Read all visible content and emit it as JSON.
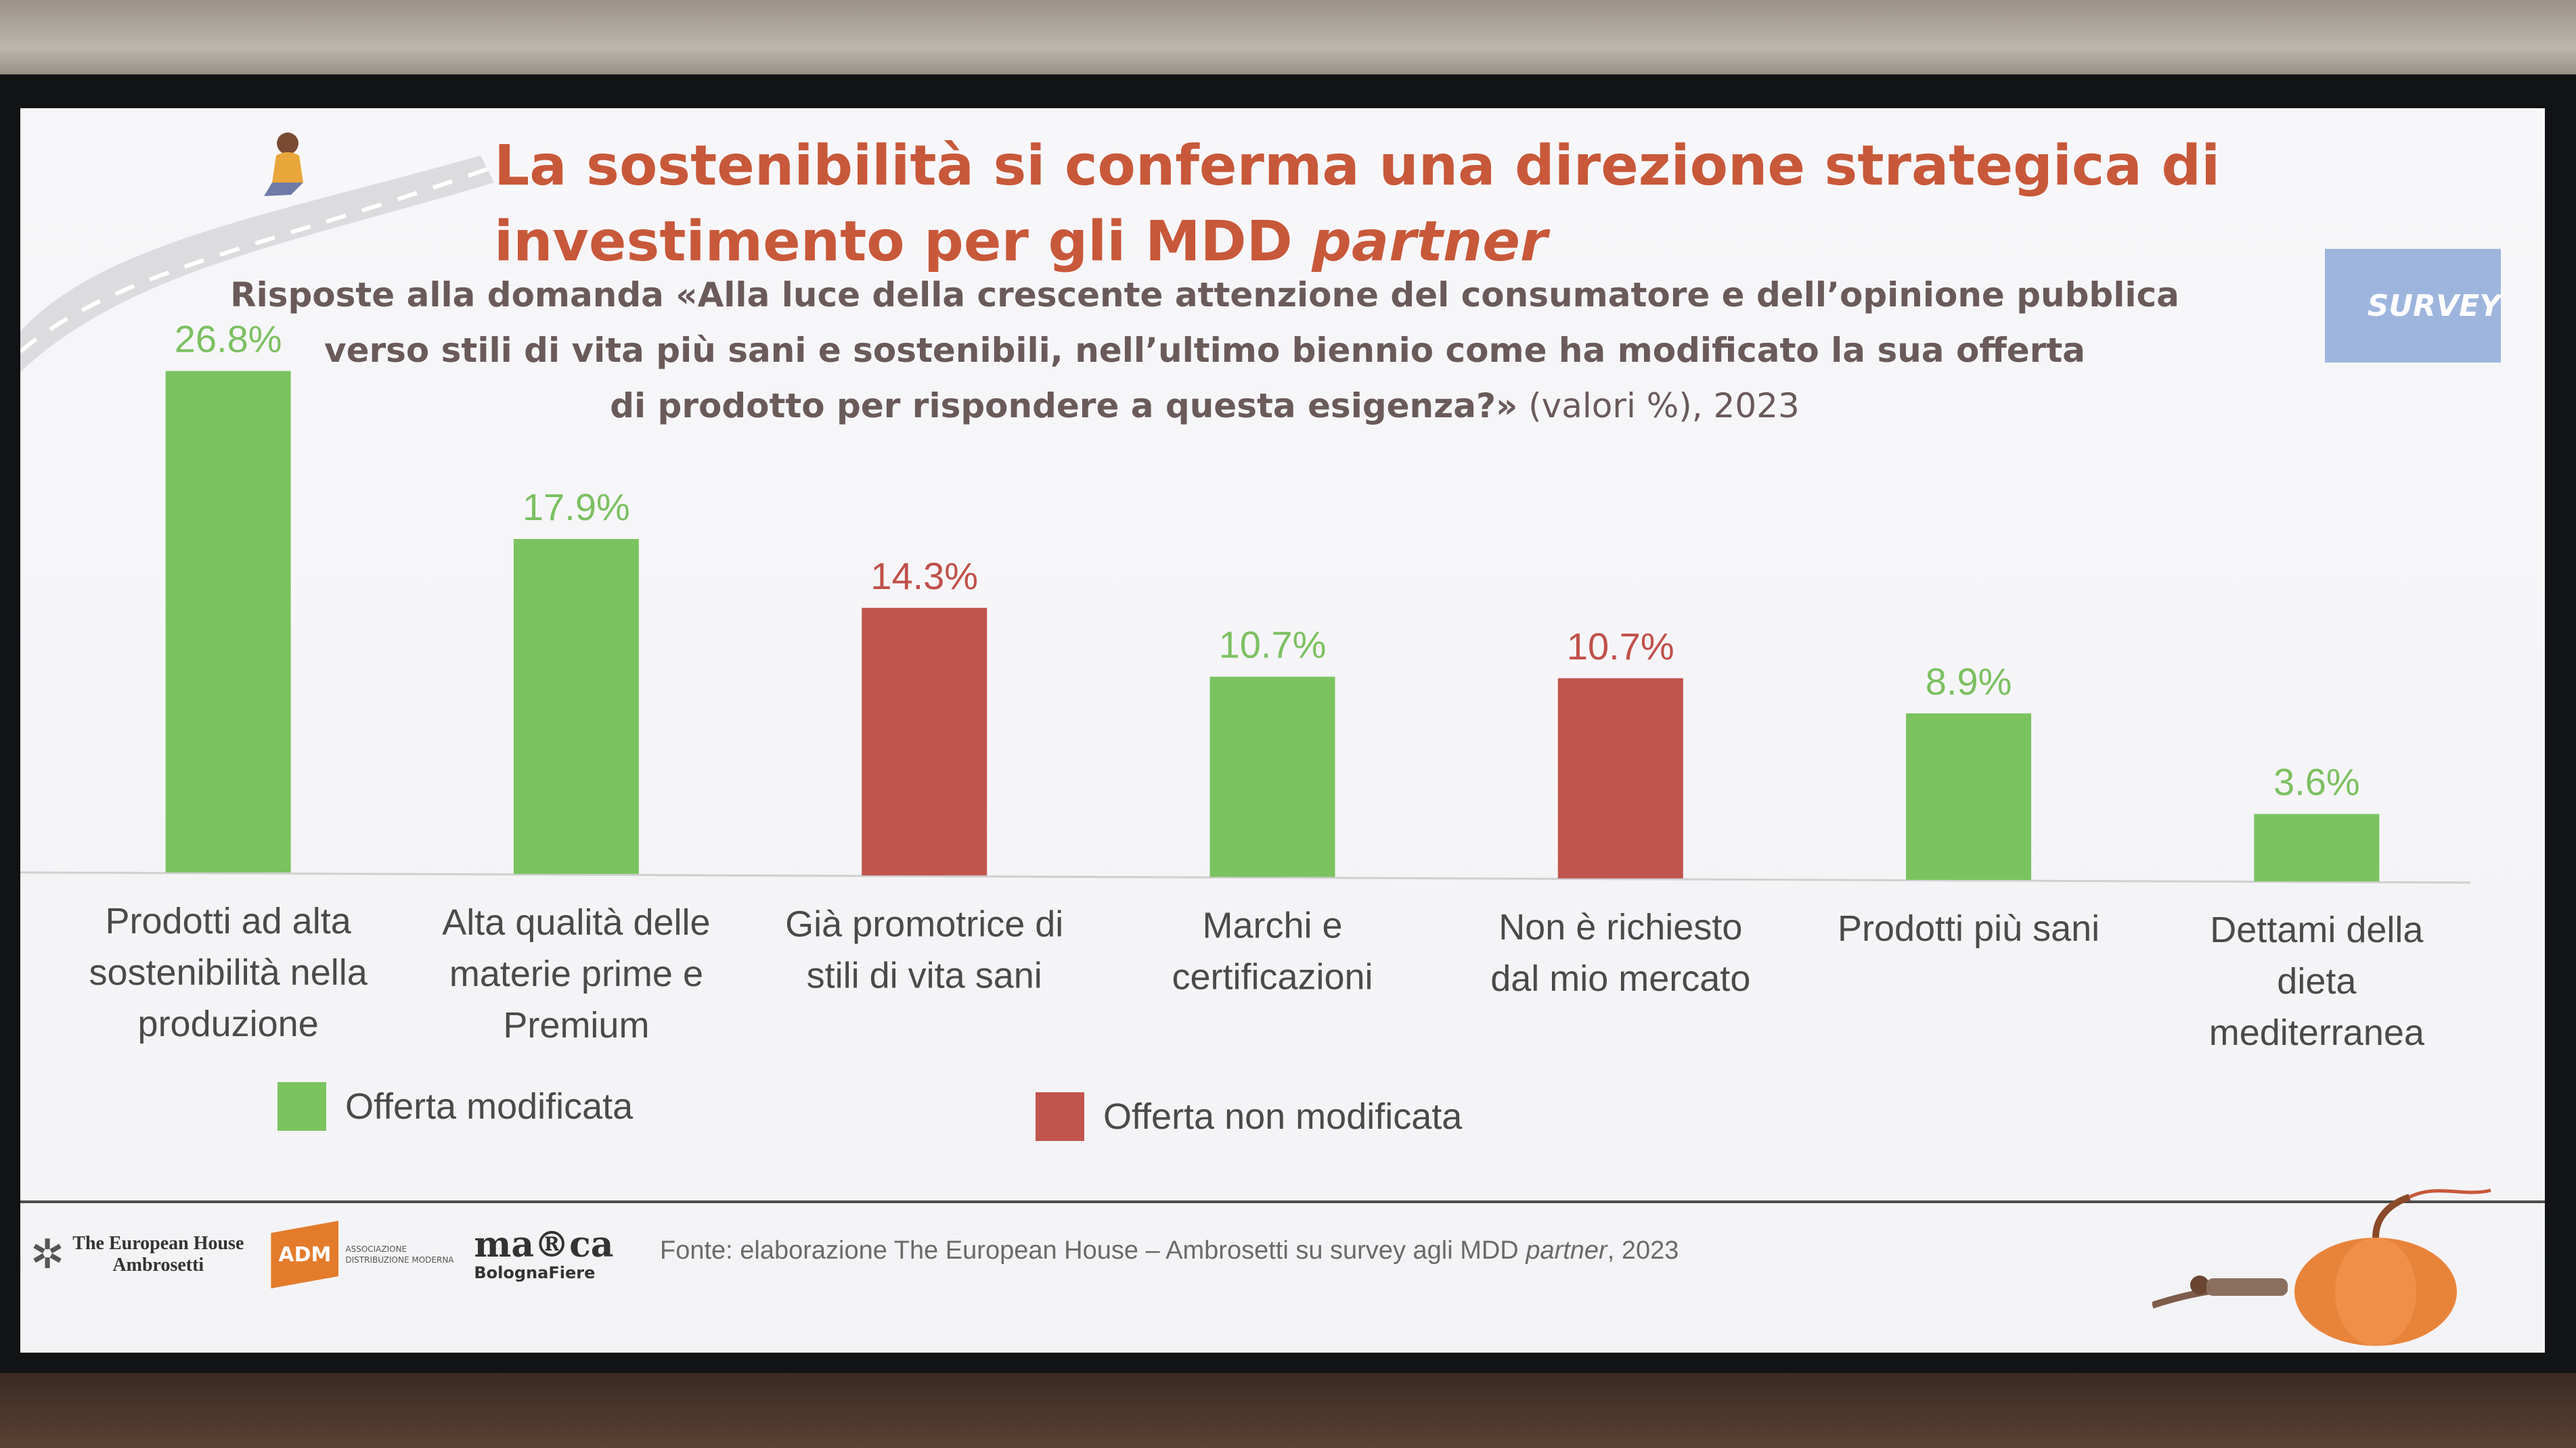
{
  "title": {
    "line1": "La sostenibilità si conferma una direzione strategica di",
    "line2_plain": "investimento per gli MDD ",
    "line2_italic": "partner"
  },
  "subtitle": {
    "line1": "Risposte alla domanda «Alla luce della crescente attenzione del consumatore e dell’opinione pubblica",
    "line2": "verso stili di vita più sani e sostenibili, nell’ultimo biennio come ha modificato la sua offerta",
    "line3_bold": "di prodotto per rispondere a questa esigenza?»",
    "line3_light": " (valori %), 2023"
  },
  "badge": "SURVEY",
  "chart_data": {
    "type": "bar",
    "categories": [
      [
        "Prodotti ad alta",
        "sostenibilità nella",
        "produzione"
      ],
      [
        "Alta qualità delle",
        "materie prime e",
        "Premium"
      ],
      [
        "Già promotrice di",
        "stili di vita sani"
      ],
      [
        "Marchi e",
        "certificazioni"
      ],
      [
        "Non è richiesto",
        "dal mio mercato"
      ],
      [
        "Prodotti più sani"
      ],
      [
        "Dettami della",
        "dieta",
        "mediterranea"
      ]
    ],
    "values": [
      26.8,
      17.9,
      14.3,
      10.7,
      10.7,
      8.9,
      3.6
    ],
    "value_labels": [
      "26.8%",
      "17.9%",
      "14.3%",
      "10.7%",
      "10.7%",
      "8.9%",
      "3.6%"
    ],
    "groups": [
      "modificata",
      "modificata",
      "non_modificata",
      "modificata",
      "non_modificata",
      "modificata",
      "modificata"
    ],
    "ylim": [
      0,
      30
    ],
    "grid": false,
    "legend": [
      {
        "key": "modificata",
        "label": "Offerta modificata",
        "color": "#7ac35f"
      },
      {
        "key": "non_modificata",
        "label": "Offerta non modificata",
        "color": "#c1554e"
      }
    ],
    "legend_placement": "bottom"
  },
  "colors": {
    "title": "#c8583a",
    "green_bar": "#7ac35f",
    "red_bar": "#c1554e",
    "green_label": "#7cc061",
    "red_label": "#c0504a"
  },
  "footer": {
    "logo_teh_line1": "The European House",
    "logo_teh_line2": "Ambrosetti",
    "logo_adm": "ADM",
    "logo_adm_text": "ASSOCIAZIONE DISTRIBUZIONE MODERNA",
    "logo_marca": "ma®ca",
    "logo_marca_sub": "BolognaFiere",
    "source_plain": "Fonte: elaborazione The European House – Ambrosetti su survey agli MDD ",
    "source_italic": "partner",
    "source_end": ", 2023"
  }
}
